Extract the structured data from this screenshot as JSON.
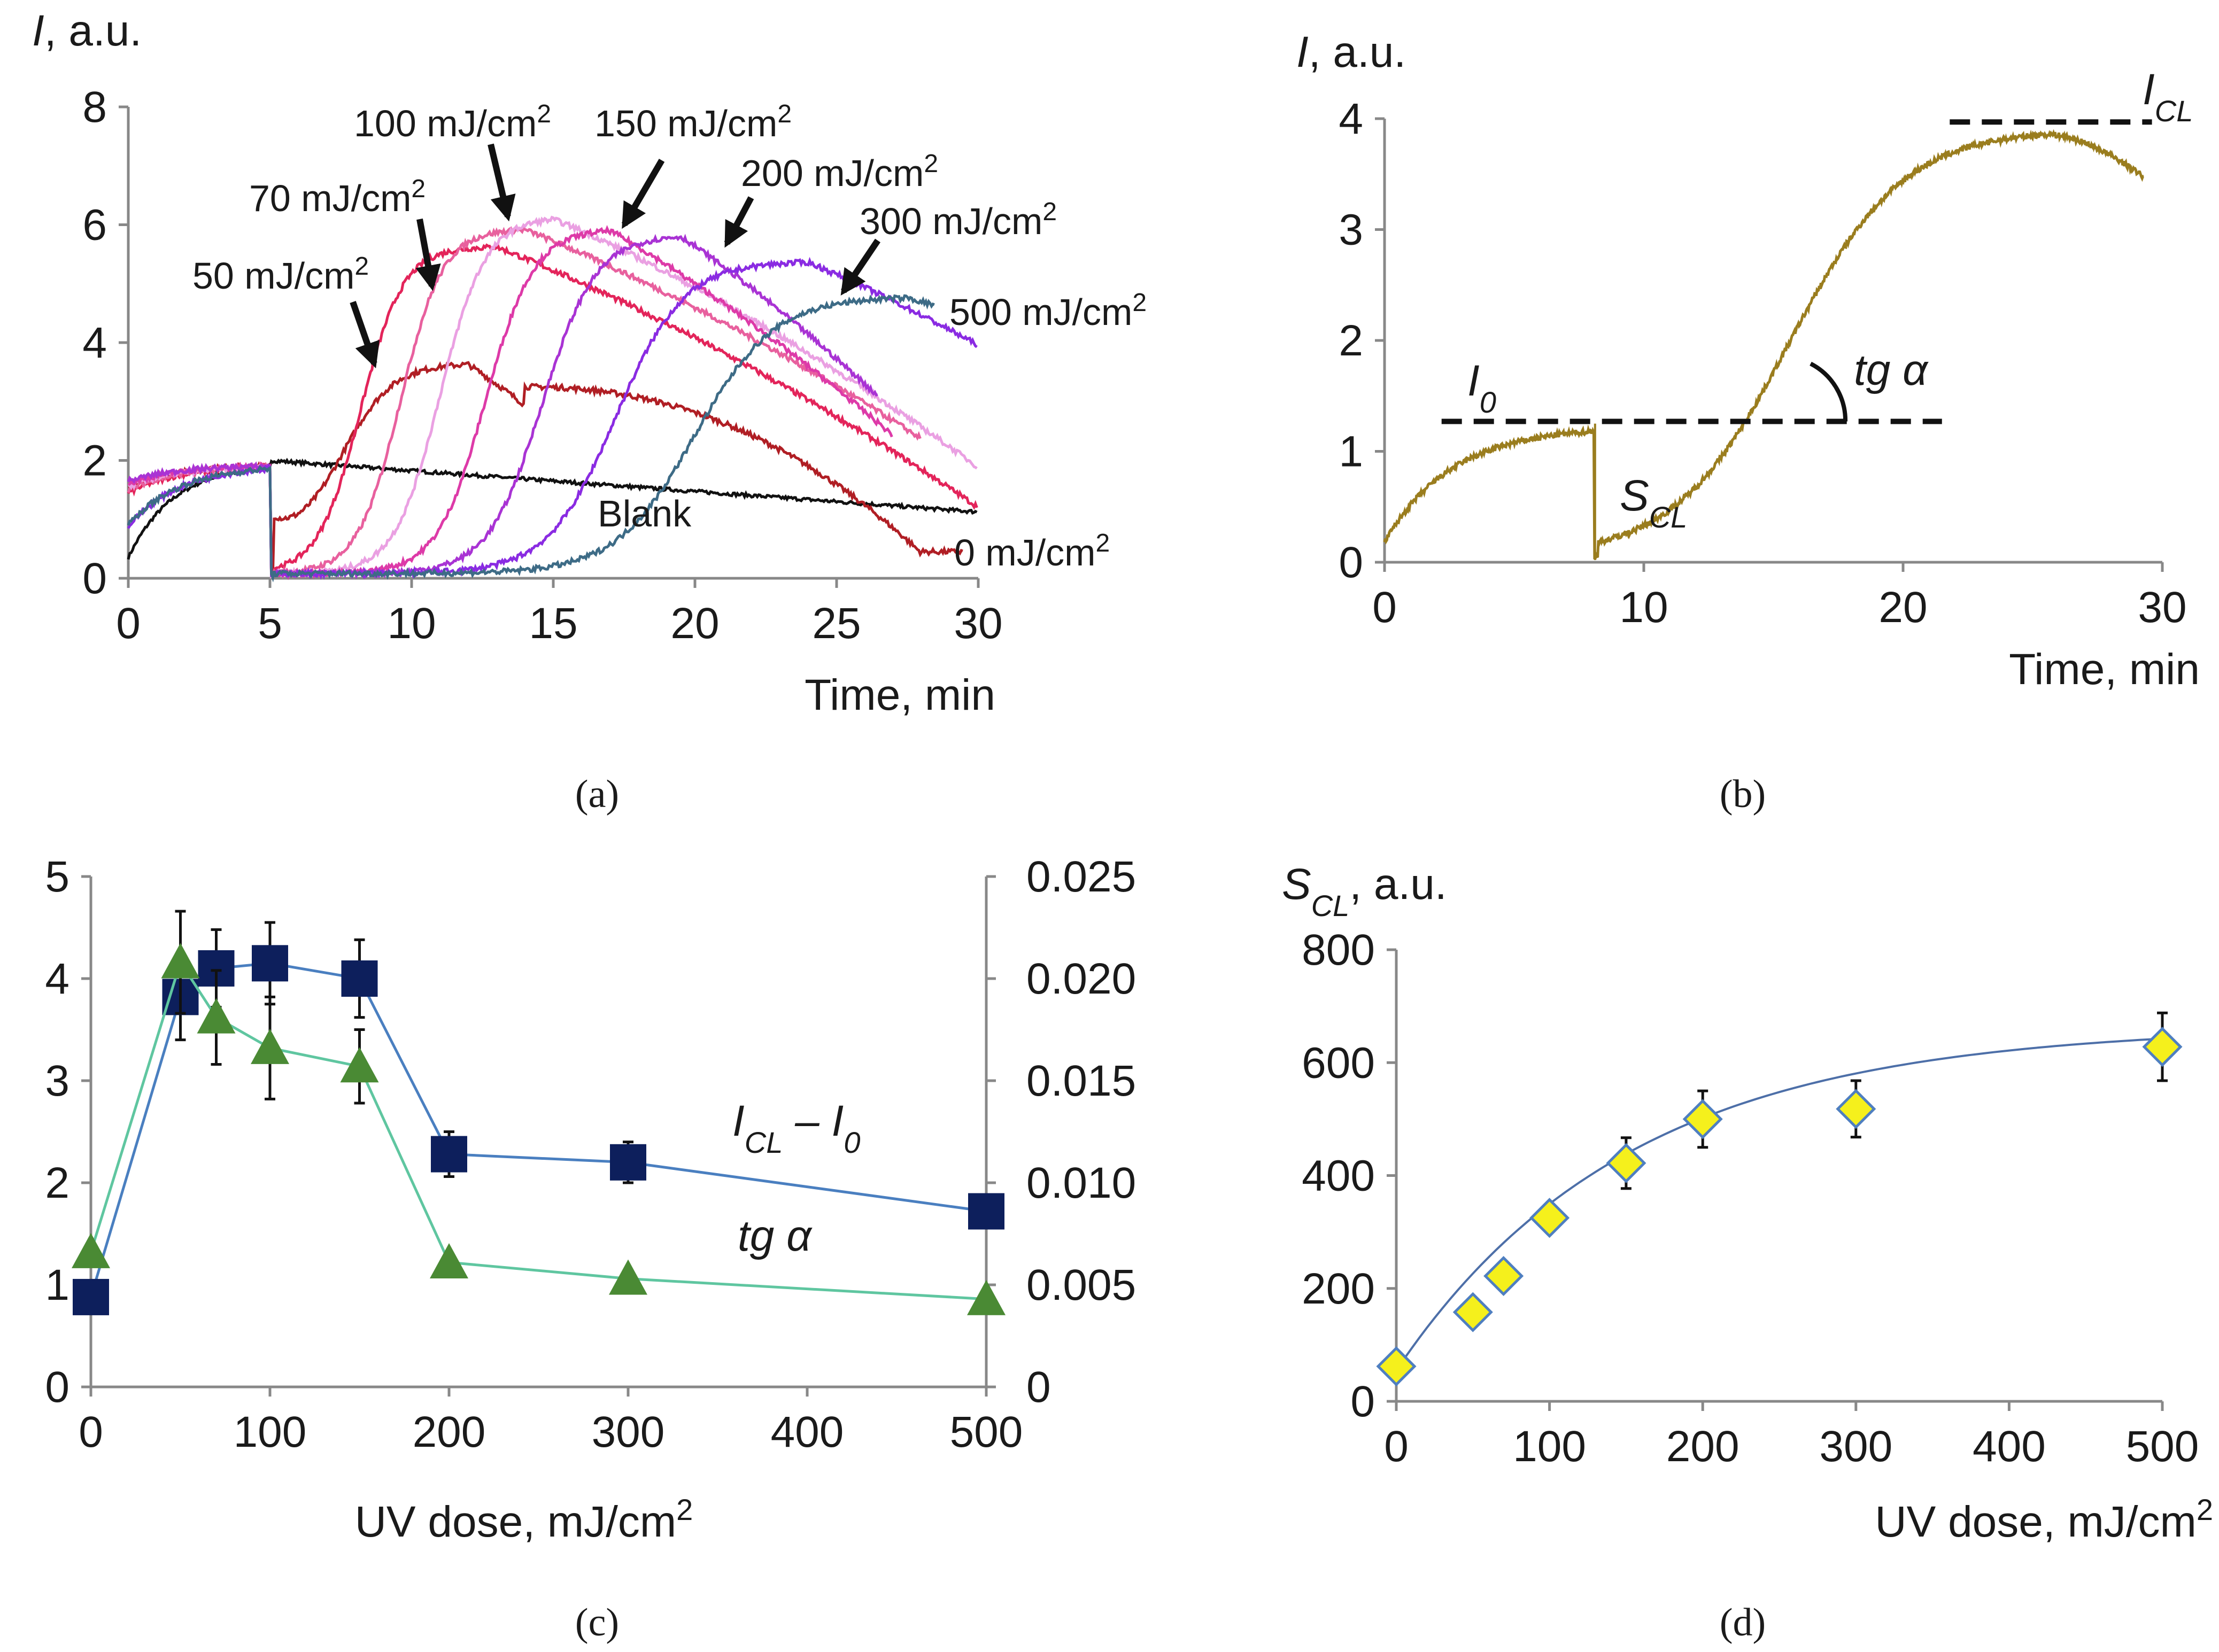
{
  "chart_data": [
    {
      "panel": "a",
      "type": "line",
      "caption": "(a)",
      "xlabel": "Time, min",
      "ylabel_italic": "I",
      "ylabel_rest": ", a.u.",
      "xlim": [
        0,
        30
      ],
      "ylim": [
        0,
        8
      ],
      "xticks": [
        "0",
        "5",
        "10",
        "15",
        "20",
        "25",
        "30"
      ],
      "yticks": [
        "0",
        "2",
        "4",
        "6",
        "8"
      ],
      "series": [
        {
          "name": "Blank",
          "color": "#111111",
          "dose": null,
          "label": "Blank"
        },
        {
          "name": "0 mJ/cm2",
          "color": "#b01e24",
          "dose": 0,
          "label_main": "0 mJ/cm",
          "label_sup": "2"
        },
        {
          "name": "50 mJ/cm2",
          "color": "#e3245a",
          "dose": 50,
          "label_main": "50 mJ/cm",
          "label_sup": "2"
        },
        {
          "name": "70 mJ/cm2",
          "color": "#e8609e",
          "dose": 70,
          "label_main": "70 mJ/cm",
          "label_sup": "2"
        },
        {
          "name": "100 mJ/cm2",
          "color": "#eaa0e2",
          "dose": 100,
          "label_main": "100 mJ/cm",
          "label_sup": "2"
        },
        {
          "name": "150 mJ/cm2",
          "color": "#dd3aa8",
          "dose": 150,
          "label_main": "150 mJ/cm",
          "label_sup": "2"
        },
        {
          "name": "200 mJ/cm2",
          "color": "#a933d4",
          "dose": 200,
          "label_main": "200 mJ/cm",
          "label_sup": "2"
        },
        {
          "name": "300 mJ/cm2",
          "color": "#8a2be2",
          "dose": 300,
          "label_main": "300 mJ/cm",
          "label_sup": "2"
        },
        {
          "name": "500 mJ/cm2",
          "color": "#3d6b86",
          "dose": 500,
          "label_main": "500 mJ/cm",
          "label_sup": "2"
        }
      ]
    },
    {
      "panel": "b",
      "type": "line",
      "caption": "(b)",
      "xlabel": "Time, min",
      "ylabel_italic": "I",
      "ylabel_rest": ", a.u.",
      "xlim": [
        0,
        30
      ],
      "ylim": [
        0,
        4
      ],
      "xticks": [
        "0",
        "10",
        "20",
        "30"
      ],
      "yticks": [
        "0",
        "1",
        "2",
        "3",
        "4"
      ],
      "color": "#9a7d1e",
      "annotations": {
        "i0_main": "I",
        "i0_sub": "0",
        "icl_main": "I",
        "icl_sub": "CL",
        "scl_main": "S",
        "scl_sub": "CL",
        "tga": "tg α"
      },
      "i0_level": 1.27,
      "icl_level": 3.97
    },
    {
      "panel": "c",
      "type": "line",
      "caption": "(c)",
      "xlabel_main": "UV dose, mJ/cm",
      "xlabel_sup": "2",
      "xlim": [
        0,
        500
      ],
      "ylim_left": [
        0,
        5
      ],
      "ylim_right": [
        0,
        0.025
      ],
      "xticks": [
        "0",
        "100",
        "200",
        "300",
        "400",
        "500"
      ],
      "yticks_left": [
        "0",
        "1",
        "2",
        "3",
        "4",
        "5"
      ],
      "yticks_right": [
        "0",
        "0.005",
        "0.010",
        "0.015",
        "0.020",
        "0.025"
      ],
      "x": [
        0,
        50,
        70,
        100,
        150,
        200,
        300,
        500
      ],
      "series": [
        {
          "name": "ICL − I0",
          "label_main": "I",
          "label_sub1": "CL",
          "label_mid": " – I",
          "label_sub2": "0",
          "axis": "left",
          "marker": "square",
          "color": "#0d1f5c",
          "line_color": "#4a7fc0",
          "values": [
            0.88,
            3.82,
            4.1,
            4.15,
            4.0,
            2.28,
            2.2,
            1.72
          ],
          "errors": [
            0.0,
            0.42,
            0.38,
            0.4,
            0.38,
            0.22,
            0.2,
            0.0
          ]
        },
        {
          "name": "tg α",
          "label": "tg α",
          "axis": "right",
          "marker": "triangle",
          "color": "#4a8a34",
          "line_color": "#5fc6a0",
          "values": [
            0.0066,
            0.0208,
            0.0181,
            0.0166,
            0.0157,
            0.0061,
            0.0053,
            0.0043
          ],
          "errors": [
            0.0,
            0.0025,
            0.0023,
            0.0025,
            0.0018,
            0.0,
            0.0,
            0.0
          ]
        }
      ]
    },
    {
      "panel": "d",
      "type": "scatter",
      "caption": "(d)",
      "xlabel_main": "UV dose, mJ/cm",
      "xlabel_sup": "2",
      "ylabel_main": "S",
      "ylabel_sub": "CL",
      "ylabel_rest": ", a.u.",
      "xlim": [
        0,
        500
      ],
      "ylim": [
        0,
        800
      ],
      "xticks": [
        "0",
        "100",
        "200",
        "300",
        "400",
        "500"
      ],
      "yticks": [
        "0",
        "200",
        "400",
        "600",
        "800"
      ],
      "marker": "diamond",
      "marker_fill": "#f5f01c",
      "marker_edge": "#4f7fc0",
      "fit_color": "#4d6fa8",
      "x": [
        0,
        50,
        70,
        100,
        150,
        200,
        300,
        500
      ],
      "y": [
        62,
        158,
        222,
        325,
        422,
        500,
        518,
        628
      ],
      "errors": [
        0,
        0,
        0,
        0,
        45,
        50,
        50,
        60
      ],
      "fit": {
        "a": 610,
        "k": 0.0066,
        "c": 55
      }
    }
  ]
}
